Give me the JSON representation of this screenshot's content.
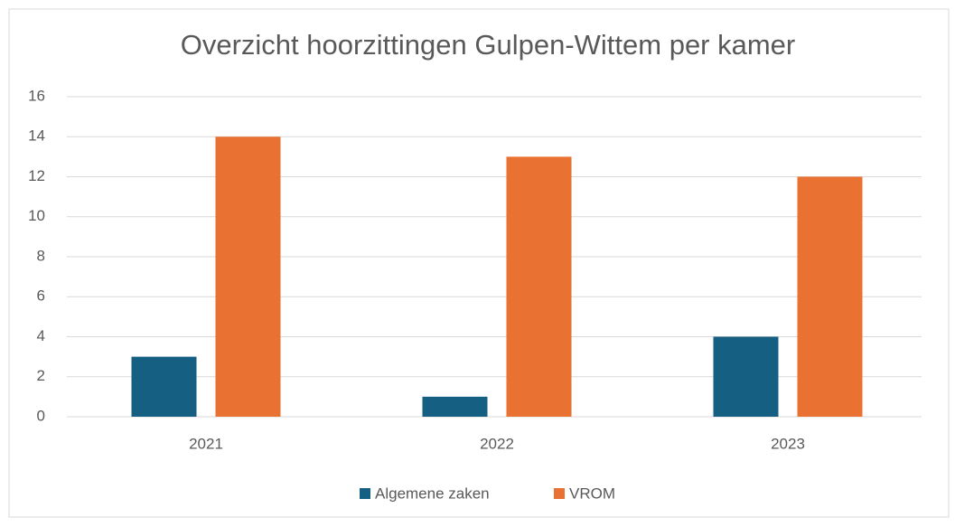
{
  "chart_data": {
    "type": "bar",
    "title": "Overzicht hoorzittingen Gulpen-Wittem per kamer",
    "categories": [
      "2021",
      "2022",
      "2023"
    ],
    "series": [
      {
        "name": "Algemene zaken",
        "color": "#156082",
        "values": [
          3,
          1,
          4
        ]
      },
      {
        "name": "VROM",
        "color": "#e97132",
        "values": [
          14,
          13,
          12
        ]
      }
    ],
    "ylim": [
      0,
      16
    ],
    "yticks": [
      0,
      2,
      4,
      6,
      8,
      10,
      12,
      14,
      16
    ],
    "grid": true,
    "legend": "bottom"
  }
}
